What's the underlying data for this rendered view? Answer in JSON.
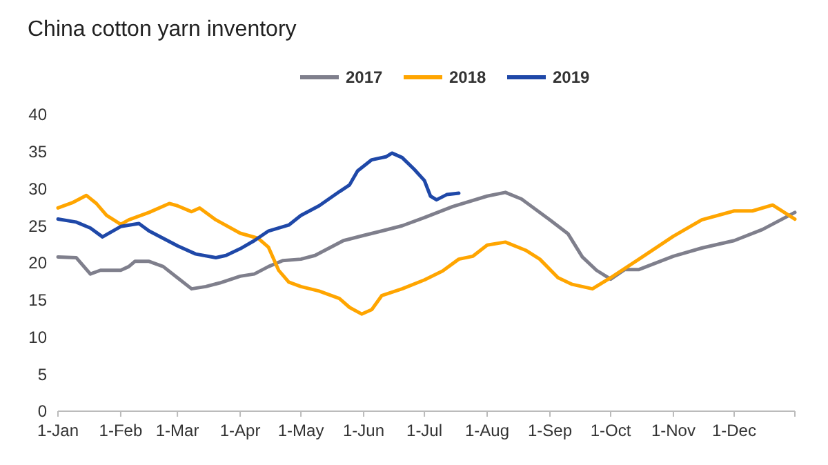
{
  "chart_data": {
    "type": "line",
    "title": "China cotton yarn inventory",
    "x": [
      "--01-01",
      "--01-10",
      "--01-17",
      "--01-22",
      "--02-01",
      "--02-05",
      "--02-08",
      "--02-15",
      "--02-22",
      "--03-01",
      "--03-08",
      "--03-15",
      "--03-22",
      "--04-01",
      "--04-08",
      "--04-15",
      "--04-22",
      "--05-01",
      "--05-08",
      "--05-15",
      "--05-22",
      "--06-01",
      "--06-10",
      "--06-20",
      "--07-01",
      "--07-15",
      "--08-01",
      "--08-10",
      "--08-18",
      "--09-01",
      "--09-10",
      "--09-17",
      "--09-24",
      "--10-01",
      "--10-08",
      "--10-15",
      "--11-01",
      "--11-15",
      "--12-01",
      "--12-15",
      "--12-31"
    ],
    "series": [
      {
        "name": "2017",
        "color": "#7f7f8c",
        "values": [
          20.8,
          20.7,
          18.5,
          19,
          19,
          19.5,
          20.2,
          20.2,
          19.5,
          18,
          16.5,
          16.8,
          17.3,
          18.2,
          18.5,
          19.5,
          20.3,
          20.5,
          21,
          22,
          23,
          23.7,
          24.3,
          25,
          26.1,
          27.6,
          29,
          29.5,
          28.6,
          25.8,
          23.9,
          20.8,
          19,
          17.8,
          19.1,
          19.1,
          20.9,
          22,
          23,
          24.5,
          26.8
        ]
      },
      {
        "name": "2018",
        "color": "#ffa500",
        "x": [
          "--01-01",
          "--01-08",
          "--01-15",
          "--01-20",
          "--01-25",
          "--02-01",
          "--02-05",
          "--02-15",
          "--02-25",
          "--03-01",
          "--03-08",
          "--03-12",
          "--03-20",
          "--04-01",
          "--04-10",
          "--04-15",
          "--04-20",
          "--04-25",
          "--05-01",
          "--05-10",
          "--05-20",
          "--05-25",
          "--05-31",
          "--06-05",
          "--06-10",
          "--06-20",
          "--07-01",
          "--07-10",
          "--07-18",
          "--07-25",
          "--08-01",
          "--08-10",
          "--08-20",
          "--08-27",
          "--09-05",
          "--09-12",
          "--09-22",
          "--10-01",
          "--10-15",
          "--11-01",
          "--11-15",
          "--12-01",
          "--12-10",
          "--12-20",
          "--12-31"
        ],
        "values": [
          27.4,
          28.1,
          29.1,
          28,
          26.4,
          25.2,
          25.8,
          26.8,
          28,
          27.7,
          26.9,
          27.4,
          25.8,
          24,
          23.3,
          22.1,
          19,
          17.4,
          16.8,
          16.2,
          15.2,
          14,
          13.1,
          13.7,
          15.6,
          16.5,
          17.7,
          18.9,
          20.5,
          20.9,
          22.4,
          22.8,
          21.7,
          20.5,
          18,
          17.1,
          16.5,
          18,
          20.5,
          23.6,
          25.8,
          27,
          27,
          27.8,
          25.9
        ]
      },
      {
        "name": "2019",
        "color": "#1f48a8",
        "x": [
          "--01-01",
          "--01-10",
          "--01-17",
          "--01-23",
          "--02-01",
          "--02-10",
          "--02-15",
          "--03-01",
          "--03-10",
          "--03-20",
          "--03-25",
          "--04-01",
          "--04-08",
          "--04-15",
          "--04-25",
          "--05-01",
          "--05-10",
          "--05-20",
          "--05-25",
          "--05-29",
          "--06-05",
          "--06-12",
          "--06-15",
          "--06-20",
          "--06-26",
          "--07-01",
          "--07-04",
          "--07-07",
          "--07-12",
          "--07-18"
        ],
        "values": [
          25.9,
          25.5,
          24.7,
          23.5,
          24.9,
          25.3,
          24.3,
          22.3,
          21.2,
          20.7,
          21,
          21.9,
          23,
          24.3,
          25.1,
          26.4,
          27.7,
          29.6,
          30.5,
          32.4,
          33.9,
          34.3,
          34.8,
          34.2,
          32.6,
          31.1,
          29,
          28.5,
          29.2,
          29.4
        ]
      }
    ],
    "xlim": [
      "--01-01",
      "--12-31"
    ],
    "xticks": [
      {
        "value": "--01-01",
        "label": "1-Jan"
      },
      {
        "value": "--02-01",
        "label": "1-Feb"
      },
      {
        "value": "--03-01",
        "label": "1-Mar"
      },
      {
        "value": "--04-01",
        "label": "1-Apr"
      },
      {
        "value": "--05-01",
        "label": "1-May"
      },
      {
        "value": "--06-01",
        "label": "1-Jun"
      },
      {
        "value": "--07-01",
        "label": "1-Jul"
      },
      {
        "value": "--08-01",
        "label": "1-Aug"
      },
      {
        "value": "--09-01",
        "label": "1-Sep"
      },
      {
        "value": "--10-01",
        "label": "1-Oct"
      },
      {
        "value": "--11-01",
        "label": "1-Nov"
      },
      {
        "value": "--12-01",
        "label": "1-Dec"
      },
      {
        "value": "--12-31",
        "label": null
      }
    ],
    "ylim": [
      0,
      40
    ],
    "yticks": [
      0,
      5,
      10,
      15,
      20,
      25,
      30,
      35,
      40
    ],
    "grid": false,
    "legend": "top",
    "marker": "none",
    "line_style": "solid"
  }
}
